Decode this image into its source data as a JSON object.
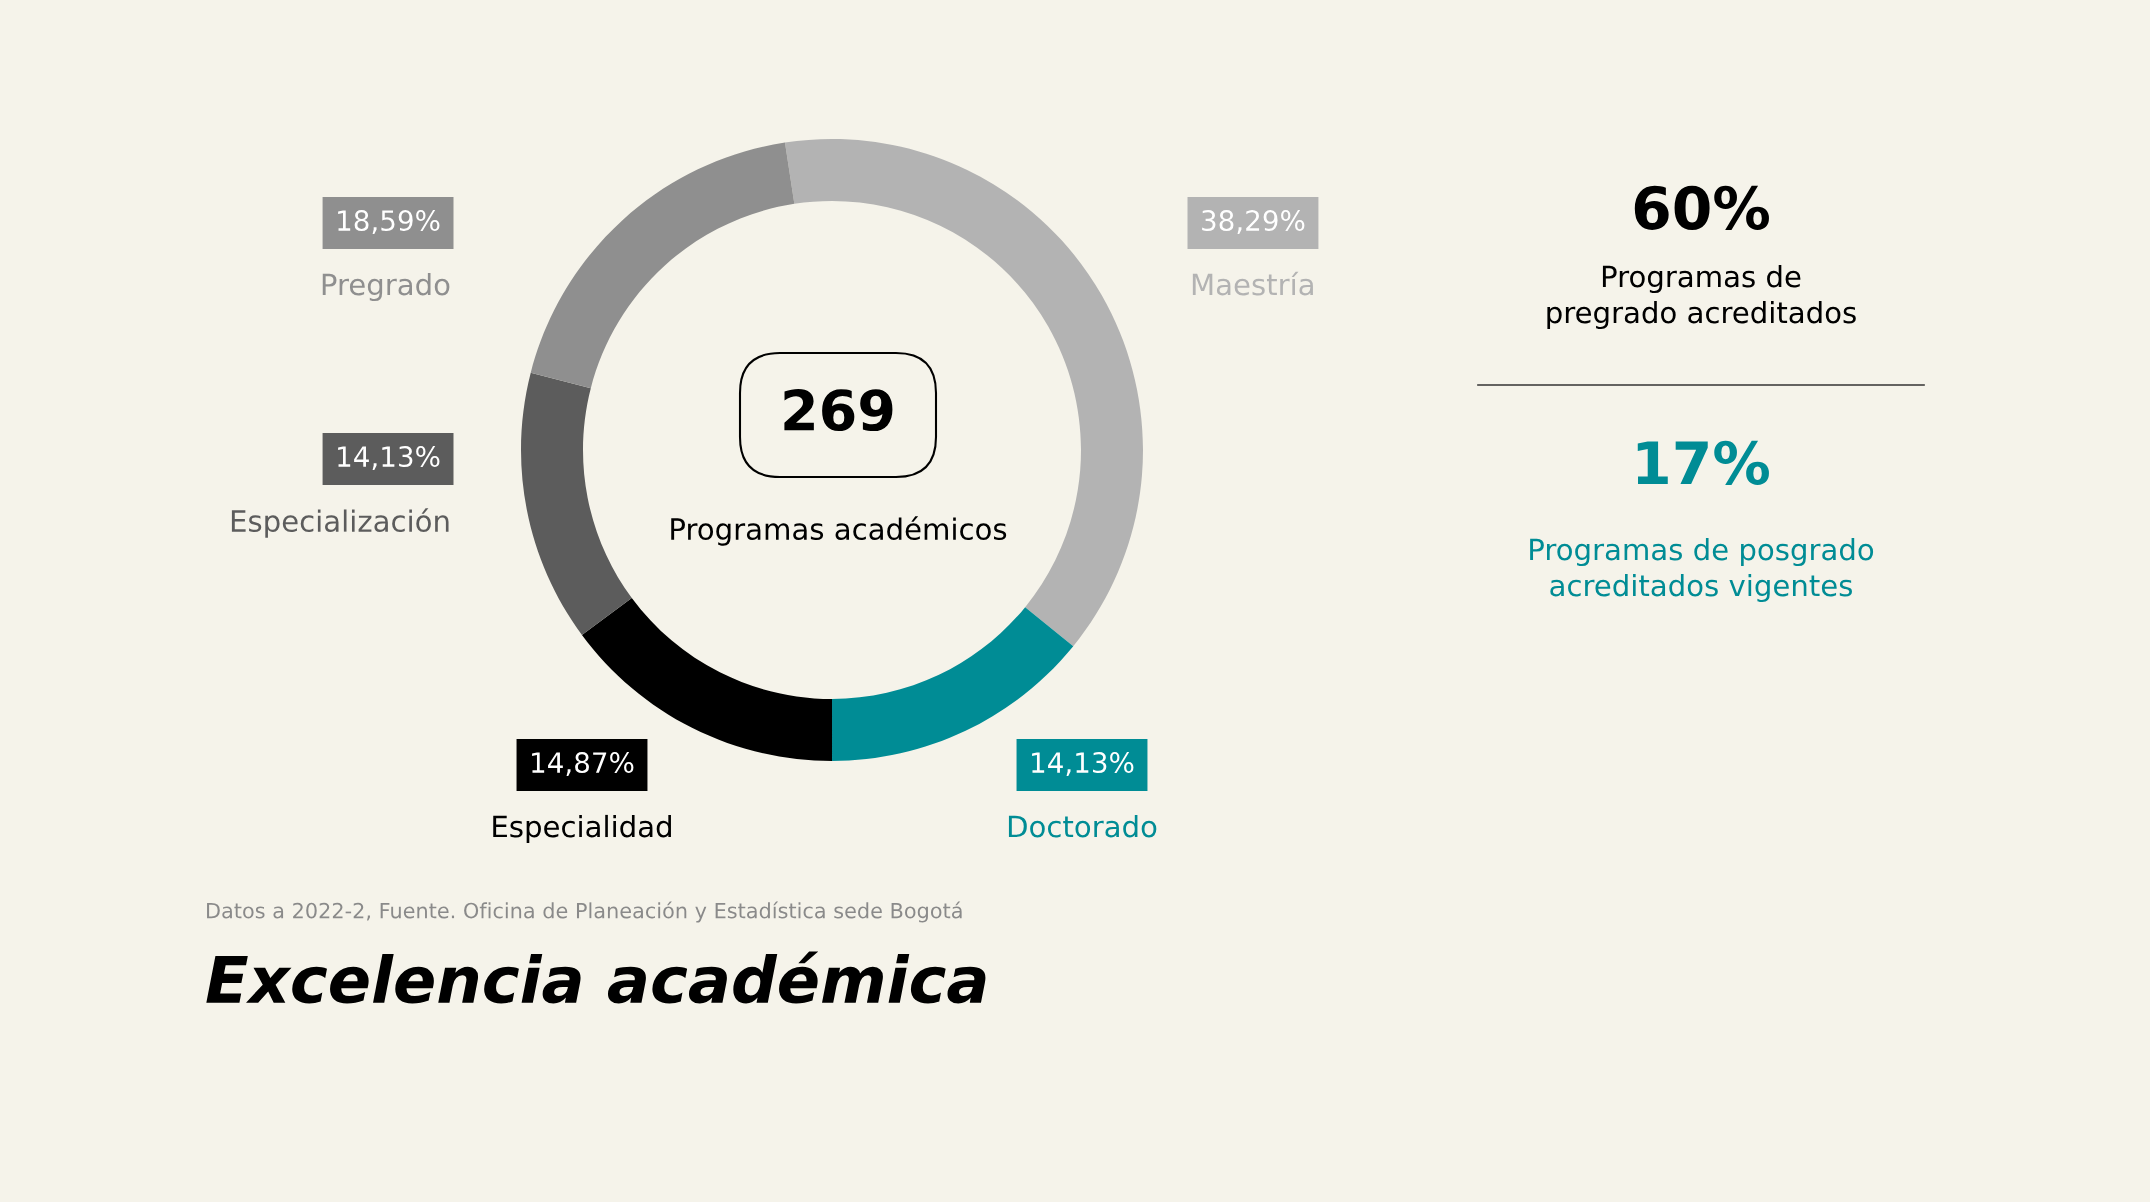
{
  "chart_data": {
    "type": "donut",
    "legend": "left",
    "title": "Excelencia académica",
    "categories": [
      "Maestría",
      "Doctorado",
      "Especialidad",
      "Especialización",
      "Pregrado"
    ],
    "values": [
      38.29,
      14.13,
      14.87,
      14.13,
      18.59
    ],
    "value_labels": [
      "38,29%",
      "14,13%",
      "14,87%",
      "14,13%",
      "18,59%"
    ],
    "colors": [
      "#b3b3b3",
      "#008c95",
      "#000000",
      "#5c5c5c",
      "#8f8f8f"
    ],
    "annotations": [
      "269",
      "Programas académicos",
      "60%",
      "Programas de\npregrado acreditados",
      "17%",
      "Programas de posgrado\nacreditados vigentes",
      "Datos a 2022-2, Fuente. Oficina de Planeación y Estadística sede Bogotá"
    ]
  }
}
